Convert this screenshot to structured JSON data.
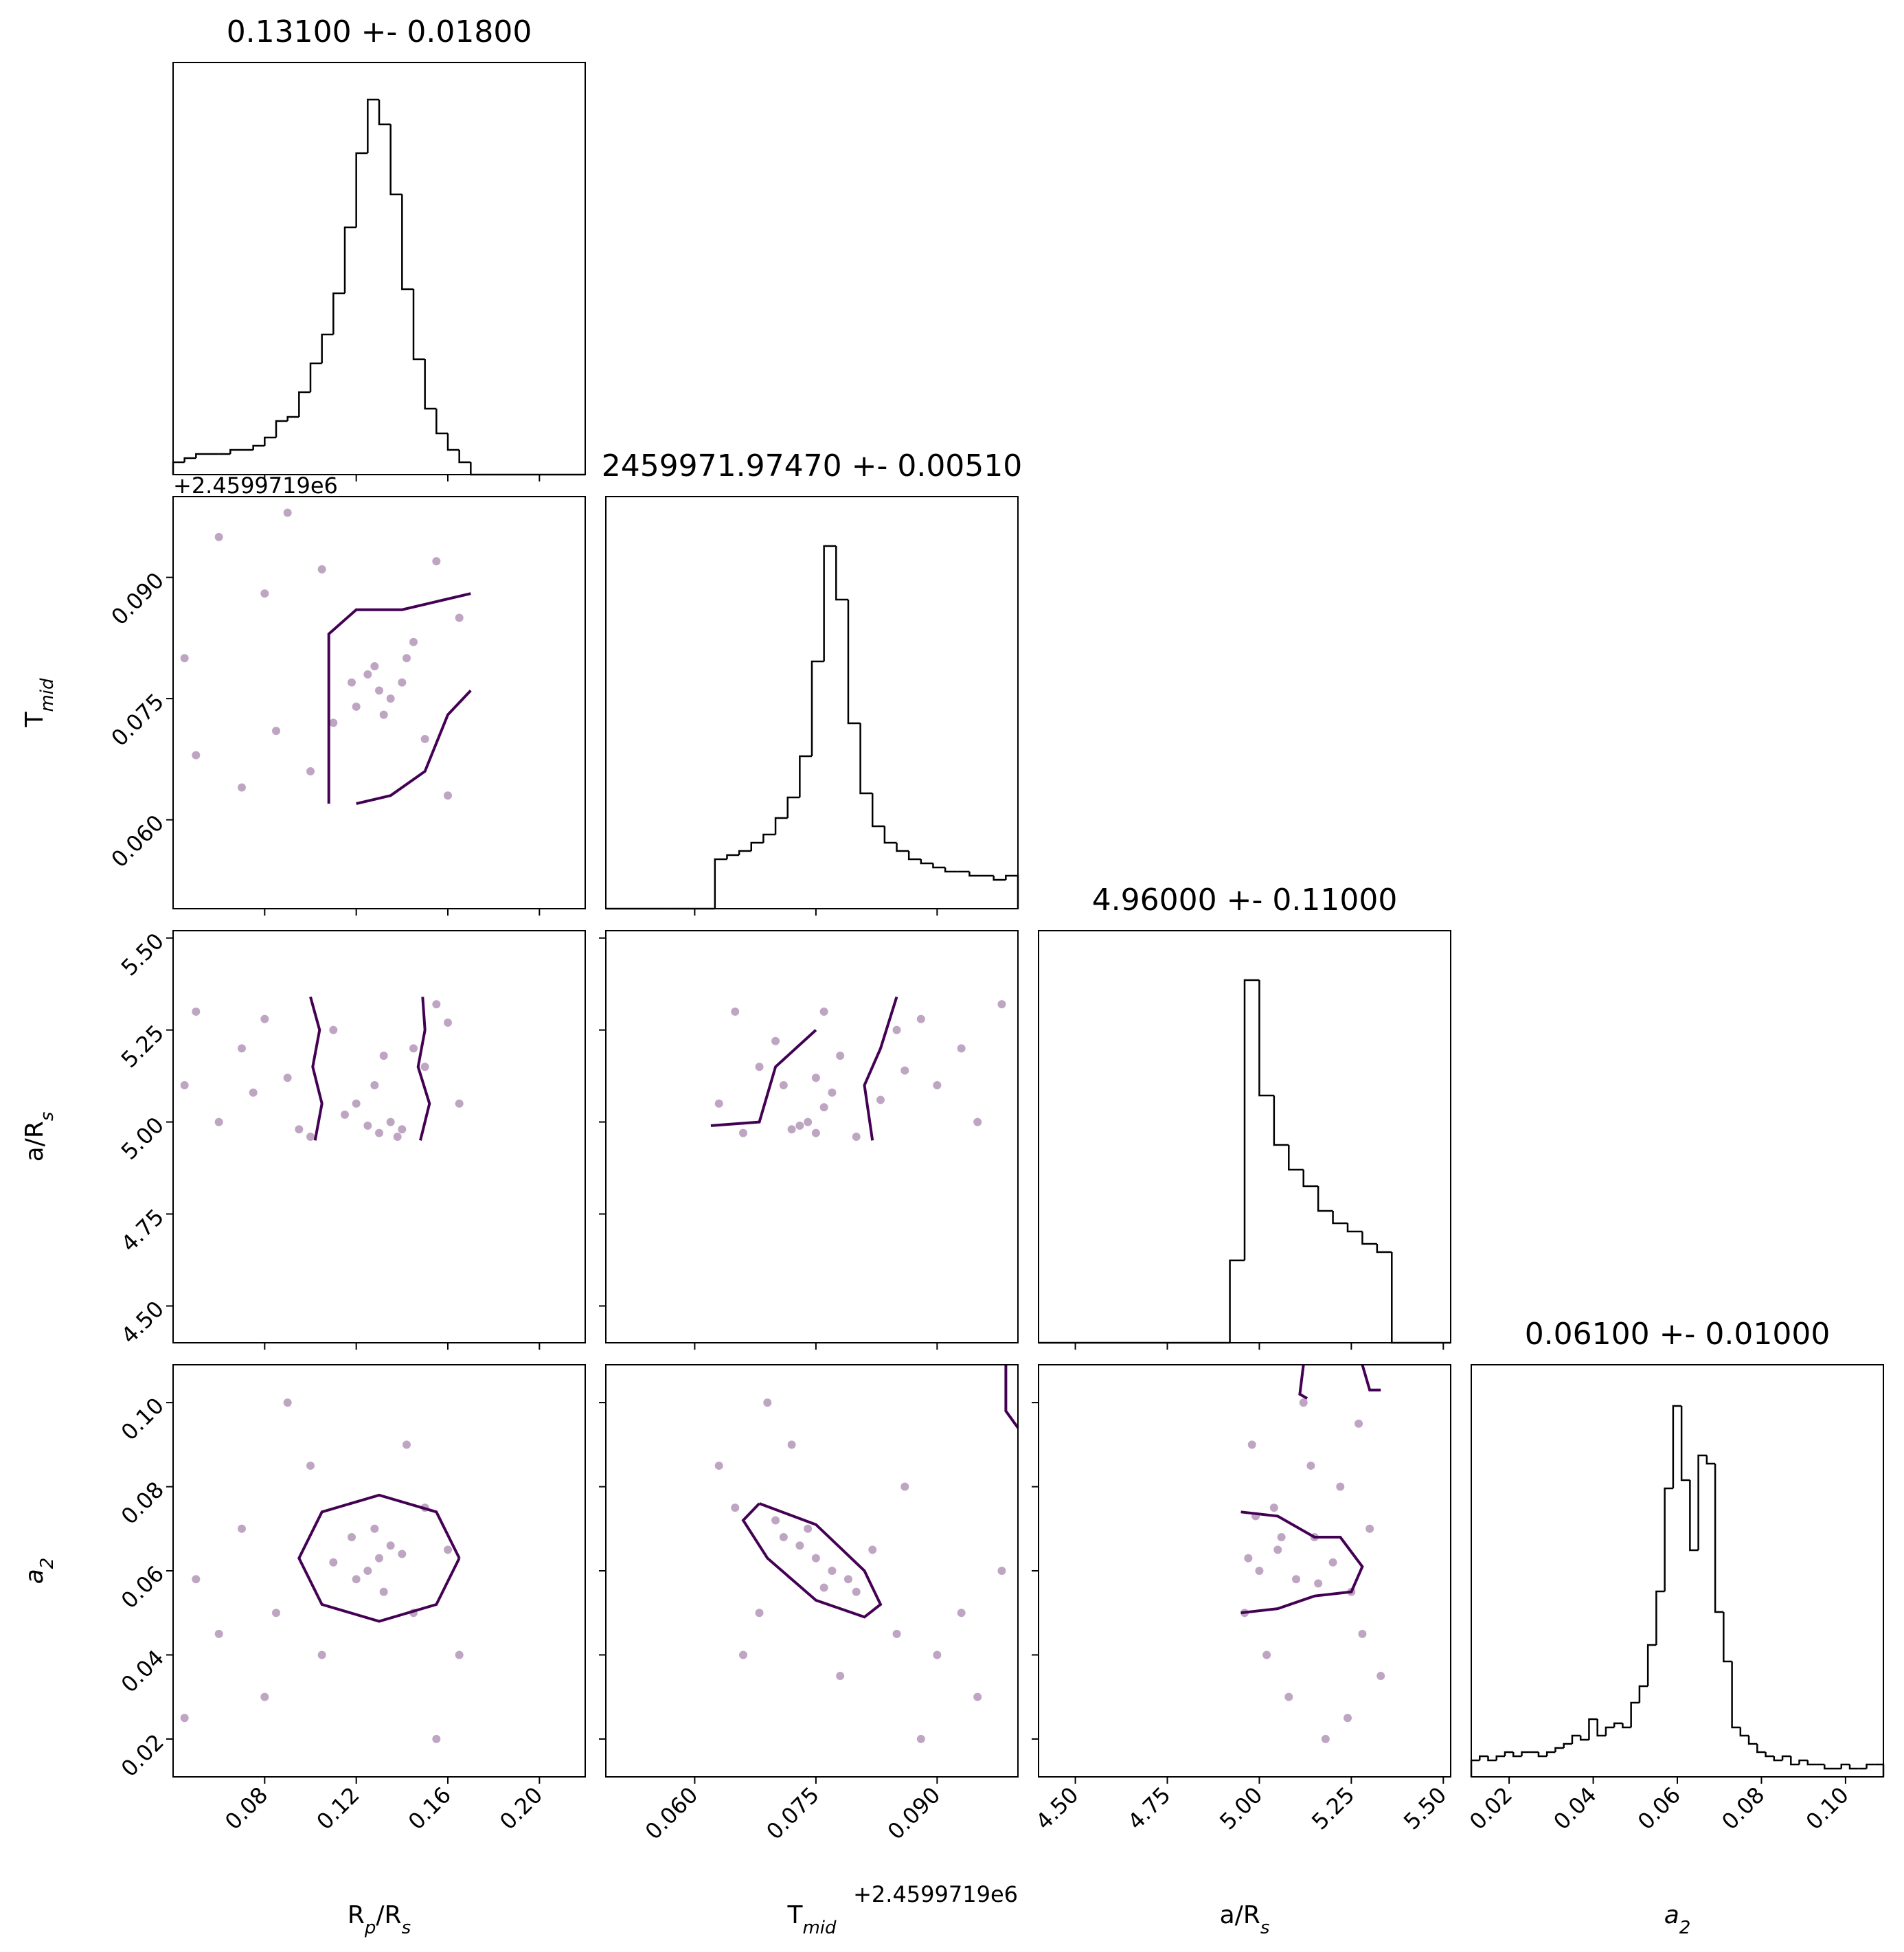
{
  "chart_data": {
    "type": "corner",
    "color": "#440154",
    "parameters": [
      {
        "title": "0.13100 +- 0.01800",
        "label": [
          "R",
          "p",
          "/R",
          "s"
        ],
        "lim": [
          0.04,
          0.22
        ],
        "ticks": [
          0.08,
          0.12,
          0.16,
          {
            "value": 0.2,
            "label": "0.20"
          }
        ],
        "hist": {
          "ylim": [
            0,
            100
          ],
          "bins": [
            0.04,
            0.045,
            0.05,
            0.055,
            0.06,
            0.065,
            0.07,
            0.075,
            0.08,
            0.085,
            0.09,
            0.095,
            0.1,
            0.105,
            0.11,
            0.115,
            0.12,
            0.125,
            0.13,
            0.135,
            0.14,
            0.145,
            0.15,
            0.155,
            0.16,
            0.165,
            0.17,
            0.175,
            0.18,
            0.185,
            0.19,
            0.195,
            0.2,
            0.205,
            0.21,
            0.215,
            0.22
          ],
          "counts": [
            3,
            4,
            5,
            5,
            5,
            6,
            6,
            7,
            9,
            13,
            14,
            20,
            27,
            34,
            44,
            60,
            78,
            91,
            85,
            68,
            45,
            28,
            16,
            10,
            6,
            3,
            0,
            0,
            0,
            0,
            0,
            0,
            0,
            0,
            0,
            0
          ]
        }
      },
      {
        "title": "2459971.97470 +- 0.00510",
        "label": [
          "T",
          "mid"
        ],
        "offset": "+2.4599719e6",
        "lim": [
          0.049,
          0.1
        ],
        "ticks": [
          {
            "value": 0.06,
            "label": "0.060"
          },
          {
            "value": 0.075,
            "label": "0.075"
          },
          {
            "value": 0.09,
            "label": "0.090"
          }
        ],
        "hist": {
          "ylim": [
            0,
            100
          ],
          "bins": [
            0.049,
            0.0505,
            0.052,
            0.0535,
            0.055,
            0.0565,
            0.058,
            0.0595,
            0.061,
            0.0625,
            0.064,
            0.0655,
            0.067,
            0.0685,
            0.07,
            0.0715,
            0.073,
            0.0745,
            0.076,
            0.0775,
            0.079,
            0.0805,
            0.082,
            0.0835,
            0.085,
            0.0865,
            0.088,
            0.0895,
            0.091,
            0.0925,
            0.094,
            0.0955,
            0.097,
            0.0985,
            0.1
          ],
          "counts": [
            0,
            0,
            0,
            0,
            0,
            0,
            0,
            0,
            0,
            12,
            13,
            14,
            16,
            18,
            22,
            27,
            37,
            60,
            88,
            75,
            45,
            28,
            20,
            16,
            14,
            12,
            11,
            10,
            9,
            9,
            8,
            8,
            7,
            8
          ]
        }
      },
      {
        "title": "4.96000 +- 0.11000",
        "label": [
          "a/R",
          "s"
        ],
        "lim": [
          4.4,
          5.52
        ],
        "ticks": [
          {
            "value": 4.5,
            "label": "4.50"
          },
          4.75,
          {
            "value": 5,
            "label": "5.00"
          },
          5.25,
          {
            "value": 5.5,
            "label": "5.50"
          }
        ],
        "hist": {
          "ylim": [
            0,
            100
          ],
          "bins": [
            4.4,
            4.44,
            4.48,
            4.52,
            4.56,
            4.6,
            4.64,
            4.68,
            4.72,
            4.76,
            4.8,
            4.84,
            4.88,
            4.92,
            4.96,
            5,
            5.04,
            5.08,
            5.12,
            5.16,
            5.2,
            5.24,
            5.28,
            5.32,
            5.36,
            5.4,
            5.44,
            5.48,
            5.52
          ],
          "counts": [
            0,
            0,
            0,
            0,
            0,
            0,
            0,
            0,
            0,
            0,
            0,
            0,
            0,
            20,
            88,
            60,
            48,
            42,
            38,
            32,
            29,
            27,
            24,
            22,
            0,
            0,
            0,
            0
          ]
        }
      },
      {
        "title": "0.06100 +- 0.01000",
        "label": [
          "a",
          "2"
        ],
        "lim": [
          0.011,
          0.109
        ],
        "ticks": [
          0.02,
          0.04,
          0.06,
          0.08,
          {
            "value": 0.1,
            "label": "0.10"
          }
        ],
        "hist": {
          "ylim": [
            0,
            100
          ],
          "bins": [
            0.011,
            0.013,
            0.015,
            0.017,
            0.019,
            0.021,
            0.023,
            0.025,
            0.027,
            0.029,
            0.031,
            0.033,
            0.035,
            0.037,
            0.039,
            0.041,
            0.043,
            0.045,
            0.047,
            0.049,
            0.051,
            0.053,
            0.055,
            0.057,
            0.059,
            0.061,
            0.063,
            0.065,
            0.067,
            0.069,
            0.071,
            0.073,
            0.075,
            0.077,
            0.079,
            0.081,
            0.083,
            0.085,
            0.087,
            0.089,
            0.091,
            0.093,
            0.095,
            0.097,
            0.099,
            0.101,
            0.103,
            0.105,
            0.107,
            0.109
          ],
          "counts": [
            4,
            5,
            4,
            5,
            6,
            5,
            6,
            6,
            5,
            6,
            7,
            8,
            10,
            9,
            14,
            10,
            12,
            13,
            12,
            18,
            22,
            32,
            45,
            70,
            90,
            72,
            55,
            78,
            76,
            40,
            28,
            12,
            10,
            8,
            6,
            5,
            4,
            5,
            3,
            4,
            3,
            3,
            2,
            2,
            3,
            2,
            2,
            3,
            3
          ]
        }
      }
    ],
    "pairs": [
      {
        "x": [
          0.13,
          0.125,
          0.135,
          0.12,
          0.14,
          0.128,
          0.132,
          0.118,
          0.142,
          0.11,
          0.15,
          0.06,
          0.08,
          0.1,
          0.165,
          0.05,
          0.09,
          0.155,
          0.07,
          0.145,
          0.045,
          0.105,
          0.16,
          0.085
        ],
        "y": [
          0.076,
          0.078,
          0.075,
          0.074,
          0.077,
          0.079,
          0.073,
          0.077,
          0.08,
          0.072,
          0.07,
          0.095,
          0.088,
          0.066,
          0.085,
          0.068,
          0.098,
          0.092,
          0.064,
          0.082,
          0.08,
          0.091,
          0.063,
          0.071
        ],
        "contour_x": [
          0.108,
          0.108,
          0.12,
          0.14,
          0.155,
          0.17,
          null,
          0.12,
          0.135,
          0.15,
          0.16,
          0.17
        ],
        "contour_y": [
          0.062,
          0.083,
          0.086,
          0.086,
          0.087,
          0.088,
          null,
          0.062,
          0.063,
          0.066,
          0.073,
          0.076
        ]
      },
      {
        "x": [
          0.13,
          0.125,
          0.135,
          0.12,
          0.14,
          0.128,
          0.05,
          0.07,
          0.09,
          0.11,
          0.15,
          0.165,
          0.06,
          0.08,
          0.1,
          0.155,
          0.045,
          0.145,
          0.115,
          0.132,
          0.095,
          0.16,
          0.075,
          0.138
        ],
        "y": [
          4.97,
          4.99,
          5,
          5.05,
          4.98,
          5.1,
          5.3,
          5.2,
          5.12,
          5.25,
          5.15,
          5.05,
          5,
          5.28,
          4.96,
          5.32,
          5.1,
          5.2,
          5.02,
          5.18,
          4.98,
          5.27,
          5.08,
          4.96
        ],
        "contour_x": [
          0.102,
          0.105,
          0.101,
          0.104,
          0.1,
          null,
          0.148,
          0.152,
          0.147,
          0.15,
          0.149
        ],
        "contour_y": [
          4.95,
          5.05,
          5.15,
          5.25,
          5.34,
          null,
          4.95,
          5.05,
          5.15,
          5.25,
          5.34
        ]
      },
      {
        "x": [
          0.075,
          0.074,
          0.076,
          0.073,
          0.077,
          0.075,
          0.065,
          0.085,
          0.09,
          0.095,
          0.068,
          0.08,
          0.07,
          0.098,
          0.063,
          0.088,
          0.078,
          0.072,
          0.083,
          0.093,
          0.066,
          0.076,
          0.086,
          0.071
        ],
        "y": [
          4.97,
          5,
          5.04,
          4.99,
          5.08,
          5.12,
          5.3,
          5.25,
          5.1,
          5,
          5.15,
          4.96,
          5.22,
          5.32,
          5.05,
          5.28,
          5.18,
          4.98,
          5.06,
          5.2,
          4.97,
          5.3,
          5.14,
          5.1
        ],
        "contour_x": [
          0.062,
          0.068,
          0.07,
          0.075,
          null,
          0.082,
          0.081,
          0.083,
          0.085
        ],
        "contour_y": [
          4.99,
          5,
          5.15,
          5.25,
          null,
          4.95,
          5.1,
          5.2,
          5.34
        ]
      },
      {
        "x": [
          0.13,
          0.125,
          0.135,
          0.12,
          0.14,
          0.128,
          0.132,
          0.118,
          0.145,
          0.11,
          0.15,
          0.06,
          0.08,
          0.1,
          0.165,
          0.05,
          0.09,
          0.155,
          0.07,
          0.142,
          0.045,
          0.105,
          0.16,
          0.085
        ],
        "y": [
          0.063,
          0.06,
          0.066,
          0.058,
          0.064,
          0.07,
          0.055,
          0.068,
          0.05,
          0.062,
          0.075,
          0.045,
          0.03,
          0.085,
          0.04,
          0.058,
          0.1,
          0.02,
          0.07,
          0.09,
          0.025,
          0.04,
          0.065,
          0.05
        ],
        "contour_x": [
          0.165,
          0.155,
          0.13,
          0.105,
          0.095,
          0.105,
          0.13,
          0.155,
          0.165
        ],
        "contour_y": [
          0.063,
          0.074,
          0.078,
          0.074,
          0.063,
          0.052,
          0.048,
          0.052,
          0.063
        ]
      },
      {
        "x": [
          0.075,
          0.073,
          0.077,
          0.071,
          0.079,
          0.074,
          0.076,
          0.07,
          0.08,
          0.065,
          0.085,
          0.09,
          0.095,
          0.068,
          0.063,
          0.088,
          0.082,
          0.072,
          0.098,
          0.066,
          0.086,
          0.078,
          0.093,
          0.069
        ],
        "y": [
          0.063,
          0.066,
          0.06,
          0.068,
          0.058,
          0.07,
          0.056,
          0.072,
          0.055,
          0.075,
          0.045,
          0.04,
          0.03,
          0.05,
          0.085,
          0.02,
          0.065,
          0.09,
          0.06,
          0.04,
          0.08,
          0.035,
          0.05,
          0.1
        ],
        "contour_x": [
          0.068,
          0.075,
          0.081,
          0.083,
          0.081,
          0.075,
          0.069,
          0.066,
          0.068,
          null,
          0.0985,
          0.0985,
          0.1
        ],
        "contour_y": [
          0.076,
          0.071,
          0.06,
          0.052,
          0.049,
          0.053,
          0.063,
          0.072,
          0.076,
          null,
          0.109,
          0.098,
          0.094
        ]
      },
      {
        "x": [
          4.97,
          5,
          5.05,
          5.1,
          5.15,
          5.2,
          5.25,
          5.3,
          4.98,
          5.02,
          5.08,
          5.12,
          5.18,
          5.22,
          5.28,
          5.33,
          4.96,
          5.04,
          5.14,
          5.24,
          5.06,
          5.16,
          4.99,
          5.27
        ],
        "y": [
          0.063,
          0.06,
          0.065,
          0.058,
          0.068,
          0.062,
          0.055,
          0.07,
          0.09,
          0.04,
          0.03,
          0.1,
          0.02,
          0.08,
          0.045,
          0.035,
          0.05,
          0.075,
          0.085,
          0.025,
          0.068,
          0.057,
          0.073,
          0.095
        ],
        "contour_x": [
          4.95,
          5.05,
          5.15,
          5.22,
          5.28,
          5.25,
          5.15,
          5.05,
          4.95,
          null,
          5.12,
          5.11,
          5.13,
          null,
          5.28,
          5.3,
          5.33
        ],
        "contour_y": [
          0.074,
          0.073,
          0.068,
          0.068,
          0.061,
          0.055,
          0.054,
          0.051,
          0.05,
          null,
          0.109,
          0.102,
          0.101,
          null,
          0.109,
          0.103,
          0.103
        ]
      }
    ]
  }
}
